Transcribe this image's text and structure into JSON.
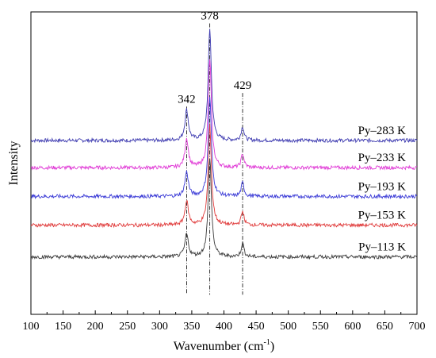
{
  "chart_data": {
    "type": "line",
    "title": "",
    "xlabel": "Wavenumber (cm",
    "xlabel_sup": "-1",
    "xlabel_close": ")",
    "ylabel": "Intensity",
    "xlim": [
      100,
      700
    ],
    "ylim": [
      0,
      1
    ],
    "x_ticks": [
      "100",
      "150",
      "200",
      "250",
      "300",
      "350",
      "400",
      "450",
      "500",
      "550",
      "600",
      "650",
      "700"
    ],
    "grid": false,
    "peak_markers": [
      {
        "position": 342,
        "label": "342",
        "label_level": 0.7
      },
      {
        "position": 378,
        "label": "378",
        "label_level": 0.975
      },
      {
        "position": 429,
        "label": "429",
        "label_level": 0.745
      }
    ],
    "series": [
      {
        "name": "Py–283 K",
        "color": "#3d3ab0",
        "baseline": 0.575,
        "peaks": {
          "342": 0.1,
          "378": 0.37,
          "429": 0.045
        }
      },
      {
        "name": "Py–233 K",
        "color": "#e03ad6",
        "baseline": 0.485,
        "peaks": {
          "342": 0.095,
          "378": 0.36,
          "429": 0.045
        }
      },
      {
        "name": "Py–193 K",
        "color": "#3a3ad6",
        "baseline": 0.39,
        "peaks": {
          "342": 0.08,
          "378": 0.33,
          "429": 0.045
        }
      },
      {
        "name": "Py–153 K",
        "color": "#e03a3a",
        "baseline": 0.295,
        "peaks": {
          "342": 0.08,
          "378": 0.33,
          "429": 0.045
        }
      },
      {
        "name": "Py–113 K",
        "color": "#3a3a3a",
        "baseline": 0.19,
        "peaks": {
          "342": 0.075,
          "378": 0.33,
          "429": 0.045
        }
      }
    ]
  }
}
